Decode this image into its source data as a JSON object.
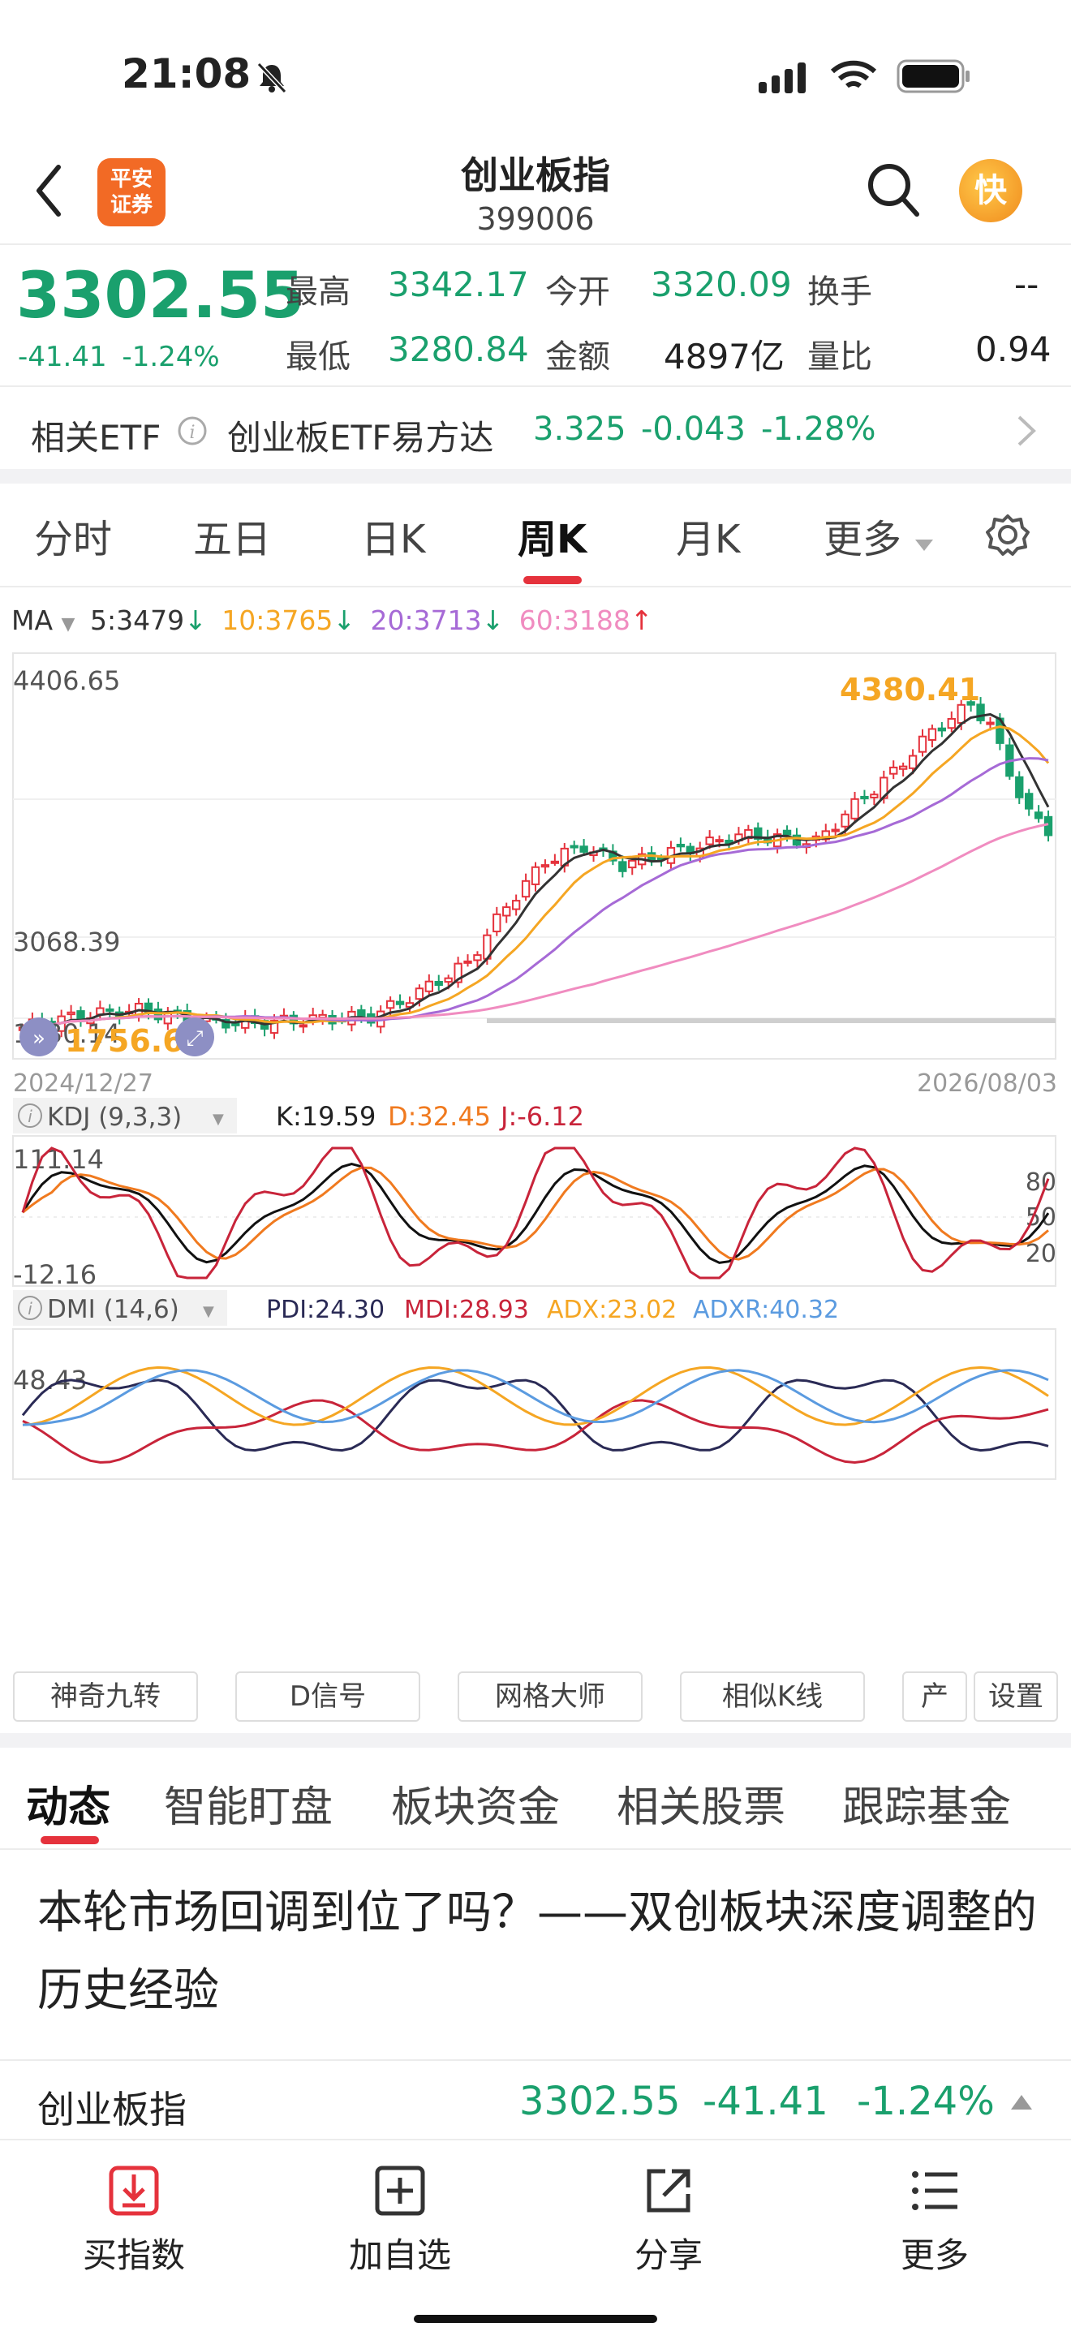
{
  "status_bar": {
    "time": "21:08"
  },
  "header": {
    "title": "创业板指",
    "code": "399006",
    "broker_logo": "平安\n证券",
    "broker_logo_line1": "平安",
    "broker_logo_line2": "证券",
    "fast_label": "快"
  },
  "quote": {
    "price": "3302.55",
    "change": "-41.41",
    "change_pct": "-1.24%",
    "high_label": "最高",
    "high": "3342.17",
    "open_label": "今开",
    "open": "3320.09",
    "turnover_label": "换手",
    "turnover": "--",
    "low_label": "最低",
    "low": "3280.84",
    "amount_label": "金额",
    "amount": "4897亿",
    "volratio_label": "量比",
    "volratio": "0.94"
  },
  "etf": {
    "label": "相关ETF",
    "name": "创业板ETF易方达",
    "price": "3.325",
    "change": "-0.043",
    "change_pct": "-1.28%"
  },
  "period_tabs": [
    "分时",
    "五日",
    "日K",
    "周K",
    "月K",
    "更多"
  ],
  "active_period": "周K",
  "ma_legend": {
    "label": "MA",
    "ma5": "5:3479",
    "ma10": "10:3765",
    "ma20": "20:3713",
    "ma60": "60:3188"
  },
  "chart_data": {
    "type": "candlestick",
    "y_high_label": "4406.65",
    "y_mid_label": "3068.39",
    "y_low_label": "1730.14",
    "max_annot": "4380.41",
    "min_annot": "1756.64",
    "date_start": "2024/12/27",
    "date_end": "2026/08/03",
    "ylim": [
      1730.14,
      4406.65
    ]
  },
  "kdj": {
    "label": "KDJ (9,3,3)",
    "k": "K:19.59",
    "d": "D:32.45",
    "j": "J:-6.12",
    "y_top": "111.14",
    "y_bottom": "-12.16",
    "ref80": "80",
    "ref50": "50",
    "ref20": "20"
  },
  "dmi": {
    "label": "DMI (14,6)",
    "pdi": "PDI:24.30",
    "mdi": "MDI:28.93",
    "adx": "ADX:23.02",
    "adxr": "ADXR:40.32",
    "y_mid": "48.43"
  },
  "tools": [
    "神奇九转",
    "D信号",
    "网格大师",
    "相似K线",
    "产",
    "设置"
  ],
  "sub_tabs": [
    "动态",
    "智能盯盘",
    "板块资金",
    "相关股票",
    "跟踪基金"
  ],
  "headline": "本轮市场回调到位了吗？——双创板块深度调整的历史经验",
  "ticker": {
    "name": "创业板指",
    "price": "3302.55",
    "change": "-41.41",
    "change_pct": "-1.24%"
  },
  "bottom_nav": [
    "买指数",
    "加自选",
    "分享",
    "更多"
  ],
  "colors": {
    "up": "#e5323c",
    "down": "#1aa06d",
    "ma10": "#f5a623",
    "ma20": "#a66ad6",
    "ma60": "#f08cc0"
  }
}
